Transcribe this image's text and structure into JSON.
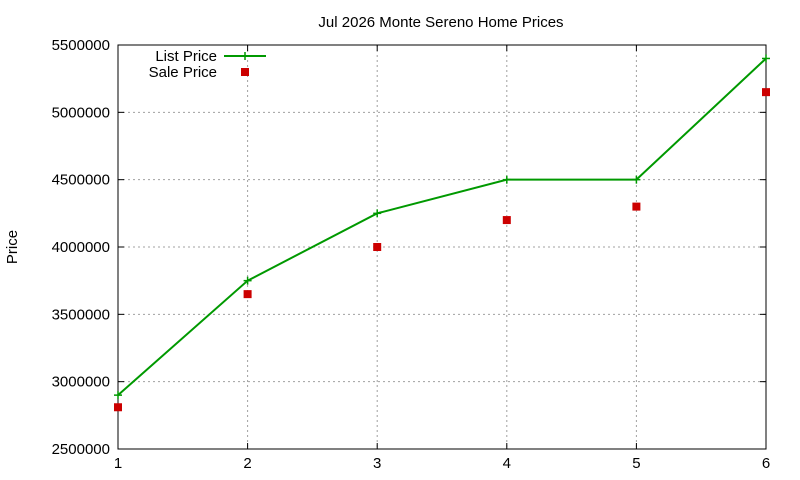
{
  "chart_data": {
    "type": "line",
    "title": "Jul 2026 Monte Sereno Home Prices",
    "xlabel": "",
    "ylabel": "Price",
    "x": [
      1,
      2,
      3,
      4,
      5,
      6
    ],
    "xlim": [
      1,
      6
    ],
    "ylim": [
      2500000,
      5500000
    ],
    "xticks": [
      1,
      2,
      3,
      4,
      5,
      6
    ],
    "yticks": [
      2500000,
      3000000,
      3500000,
      4000000,
      4500000,
      5000000,
      5500000
    ],
    "grid": true,
    "legend_position": "top-left",
    "series": [
      {
        "name": "List Price",
        "style": "line-with-plus-markers",
        "color": "#009900",
        "values": [
          2900000,
          3750000,
          4250000,
          4500000,
          4500000,
          5400000
        ]
      },
      {
        "name": "Sale Price",
        "style": "square-markers",
        "color": "#cc0000",
        "values": [
          2810000,
          3650000,
          4000000,
          4200000,
          4300000,
          5150000
        ]
      }
    ]
  }
}
